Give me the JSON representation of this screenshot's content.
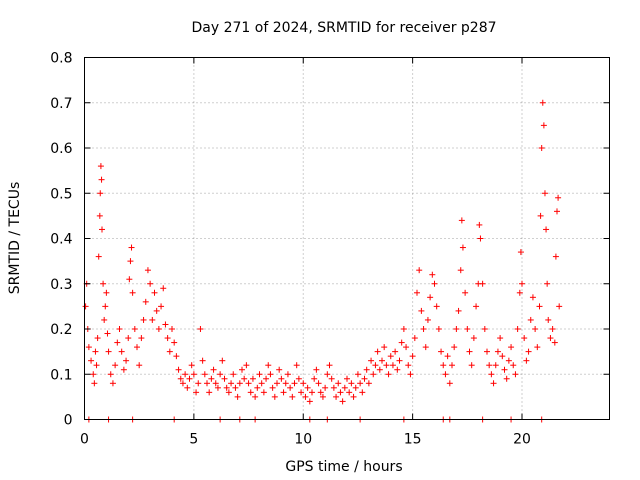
{
  "chart_data": {
    "type": "scatter",
    "title": "Day 271 of 2024, SRMTID for receiver p287",
    "xlabel": "GPS time / hours",
    "ylabel": "SRMTID / TECUs",
    "xlim": [
      0,
      24
    ],
    "ylim": [
      0,
      0.8
    ],
    "x_ticks": [
      0,
      5,
      10,
      15,
      20
    ],
    "x_tick_labels": [
      "0",
      "5",
      "10",
      "15",
      "20"
    ],
    "y_ticks": [
      0,
      0.1,
      0.2,
      0.3,
      0.4,
      0.5,
      0.6,
      0.7,
      0.8
    ],
    "y_tick_labels": [
      "0",
      "0.1",
      "0.2",
      "0.3",
      "0.4",
      "0.5",
      "0.6",
      "0.7",
      "0.8"
    ],
    "grid": true,
    "marker": "+",
    "series": [
      {
        "name": "SRMTID",
        "color": "#ff0000",
        "points": [
          [
            0.05,
            0.25
          ],
          [
            0.1,
            0.3
          ],
          [
            0.15,
            0.2
          ],
          [
            0.2,
            0.16
          ],
          [
            0.3,
            0.13
          ],
          [
            0.4,
            0.1
          ],
          [
            0.45,
            0.08
          ],
          [
            0.5,
            0.15
          ],
          [
            0.55,
            0.12
          ],
          [
            0.6,
            0.18
          ],
          [
            0.65,
            0.36
          ],
          [
            0.7,
            0.45
          ],
          [
            0.72,
            0.5
          ],
          [
            0.75,
            0.56
          ],
          [
            0.78,
            0.53
          ],
          [
            0.8,
            0.42
          ],
          [
            0.85,
            0.3
          ],
          [
            0.9,
            0.22
          ],
          [
            0.95,
            0.25
          ],
          [
            1.0,
            0.28
          ],
          [
            1.05,
            0.19
          ],
          [
            1.1,
            0.15
          ],
          [
            1.2,
            0.1
          ],
          [
            1.3,
            0.08
          ],
          [
            1.4,
            0.12
          ],
          [
            1.5,
            0.17
          ],
          [
            1.6,
            0.2
          ],
          [
            1.7,
            0.15
          ],
          [
            1.8,
            0.11
          ],
          [
            1.9,
            0.13
          ],
          [
            2.0,
            0.18
          ],
          [
            2.05,
            0.31
          ],
          [
            2.1,
            0.35
          ],
          [
            2.15,
            0.38
          ],
          [
            2.2,
            0.28
          ],
          [
            2.3,
            0.2
          ],
          [
            2.4,
            0.16
          ],
          [
            2.5,
            0.12
          ],
          [
            2.6,
            0.18
          ],
          [
            2.7,
            0.22
          ],
          [
            2.8,
            0.26
          ],
          [
            2.9,
            0.33
          ],
          [
            3.0,
            0.3
          ],
          [
            3.1,
            0.22
          ],
          [
            3.2,
            0.28
          ],
          [
            3.3,
            0.24
          ],
          [
            3.4,
            0.2
          ],
          [
            3.5,
            0.25
          ],
          [
            3.6,
            0.29
          ],
          [
            3.7,
            0.21
          ],
          [
            3.8,
            0.18
          ],
          [
            3.9,
            0.15
          ],
          [
            4.0,
            0.2
          ],
          [
            4.1,
            0.17
          ],
          [
            4.2,
            0.14
          ],
          [
            4.3,
            0.11
          ],
          [
            4.4,
            0.09
          ],
          [
            4.5,
            0.08
          ],
          [
            4.6,
            0.1
          ],
          [
            4.7,
            0.07
          ],
          [
            4.8,
            0.09
          ],
          [
            4.9,
            0.12
          ],
          [
            5.0,
            0.1
          ],
          [
            5.1,
            0.06
          ],
          [
            5.2,
            0.08
          ],
          [
            5.3,
            0.2
          ],
          [
            5.4,
            0.13
          ],
          [
            5.5,
            0.1
          ],
          [
            5.6,
            0.08
          ],
          [
            5.7,
            0.06
          ],
          [
            5.8,
            0.09
          ],
          [
            5.9,
            0.11
          ],
          [
            6.0,
            0.08
          ],
          [
            6.1,
            0.07
          ],
          [
            6.2,
            0.1
          ],
          [
            6.3,
            0.13
          ],
          [
            6.4,
            0.09
          ],
          [
            6.5,
            0.07
          ],
          [
            6.6,
            0.06
          ],
          [
            6.7,
            0.08
          ],
          [
            6.8,
            0.1
          ],
          [
            6.9,
            0.07
          ],
          [
            7.0,
            0.05
          ],
          [
            7.1,
            0.08
          ],
          [
            7.2,
            0.11
          ],
          [
            7.3,
            0.09
          ],
          [
            7.4,
            0.12
          ],
          [
            7.5,
            0.08
          ],
          [
            7.6,
            0.06
          ],
          [
            7.7,
            0.09
          ],
          [
            7.8,
            0.05
          ],
          [
            7.9,
            0.07
          ],
          [
            8.0,
            0.1
          ],
          [
            8.1,
            0.08
          ],
          [
            8.2,
            0.06
          ],
          [
            8.3,
            0.09
          ],
          [
            8.4,
            0.12
          ],
          [
            8.5,
            0.1
          ],
          [
            8.6,
            0.07
          ],
          [
            8.7,
            0.05
          ],
          [
            8.8,
            0.08
          ],
          [
            8.9,
            0.11
          ],
          [
            9.0,
            0.09
          ],
          [
            9.1,
            0.06
          ],
          [
            9.2,
            0.08
          ],
          [
            9.3,
            0.1
          ],
          [
            9.4,
            0.07
          ],
          [
            9.5,
            0.05
          ],
          [
            9.6,
            0.08
          ],
          [
            9.7,
            0.12
          ],
          [
            9.8,
            0.09
          ],
          [
            9.9,
            0.06
          ],
          [
            10.0,
            0.08
          ],
          [
            10.1,
            0.05
          ],
          [
            10.2,
            0.07
          ],
          [
            10.3,
            0.04
          ],
          [
            10.4,
            0.06
          ],
          [
            10.5,
            0.09
          ],
          [
            10.6,
            0.11
          ],
          [
            10.7,
            0.08
          ],
          [
            10.8,
            0.06
          ],
          [
            10.9,
            0.05
          ],
          [
            11.0,
            0.07
          ],
          [
            11.1,
            0.1
          ],
          [
            11.2,
            0.12
          ],
          [
            11.3,
            0.09
          ],
          [
            11.4,
            0.07
          ],
          [
            11.5,
            0.05
          ],
          [
            11.6,
            0.08
          ],
          [
            11.7,
            0.06
          ],
          [
            11.8,
            0.04
          ],
          [
            11.9,
            0.07
          ],
          [
            12.0,
            0.09
          ],
          [
            12.1,
            0.06
          ],
          [
            12.2,
            0.08
          ],
          [
            12.3,
            0.05
          ],
          [
            12.4,
            0.07
          ],
          [
            12.5,
            0.1
          ],
          [
            12.6,
            0.08
          ],
          [
            12.7,
            0.06
          ],
          [
            12.8,
            0.09
          ],
          [
            12.9,
            0.11
          ],
          [
            13.0,
            0.08
          ],
          [
            13.1,
            0.13
          ],
          [
            13.2,
            0.1
          ],
          [
            13.3,
            0.12
          ],
          [
            13.4,
            0.15
          ],
          [
            13.5,
            0.11
          ],
          [
            13.6,
            0.13
          ],
          [
            13.7,
            0.16
          ],
          [
            13.8,
            0.12
          ],
          [
            13.9,
            0.1
          ],
          [
            14.0,
            0.14
          ],
          [
            14.1,
            0.12
          ],
          [
            14.2,
            0.15
          ],
          [
            14.3,
            0.11
          ],
          [
            14.4,
            0.13
          ],
          [
            14.5,
            0.17
          ],
          [
            14.6,
            0.2
          ],
          [
            14.7,
            0.16
          ],
          [
            14.8,
            0.12
          ],
          [
            14.9,
            0.1
          ],
          [
            15.0,
            0.14
          ],
          [
            15.1,
            0.18
          ],
          [
            15.2,
            0.28
          ],
          [
            15.3,
            0.33
          ],
          [
            15.4,
            0.24
          ],
          [
            15.5,
            0.2
          ],
          [
            15.6,
            0.16
          ],
          [
            15.7,
            0.22
          ],
          [
            15.8,
            0.27
          ],
          [
            15.9,
            0.32
          ],
          [
            16.0,
            0.3
          ],
          [
            16.1,
            0.25
          ],
          [
            16.2,
            0.2
          ],
          [
            16.3,
            0.15
          ],
          [
            16.4,
            0.12
          ],
          [
            16.5,
            0.1
          ],
          [
            16.6,
            0.14
          ],
          [
            16.7,
            0.08
          ],
          [
            16.8,
            0.12
          ],
          [
            16.9,
            0.16
          ],
          [
            17.0,
            0.2
          ],
          [
            17.1,
            0.24
          ],
          [
            17.2,
            0.33
          ],
          [
            17.25,
            0.44
          ],
          [
            17.3,
            0.38
          ],
          [
            17.4,
            0.28
          ],
          [
            17.5,
            0.2
          ],
          [
            17.6,
            0.15
          ],
          [
            17.7,
            0.12
          ],
          [
            17.8,
            0.18
          ],
          [
            17.9,
            0.25
          ],
          [
            18.0,
            0.3
          ],
          [
            18.05,
            0.43
          ],
          [
            18.1,
            0.4
          ],
          [
            18.2,
            0.3
          ],
          [
            18.3,
            0.2
          ],
          [
            18.4,
            0.15
          ],
          [
            18.5,
            0.12
          ],
          [
            18.6,
            0.1
          ],
          [
            18.7,
            0.08
          ],
          [
            18.8,
            0.12
          ],
          [
            18.9,
            0.15
          ],
          [
            19.0,
            0.18
          ],
          [
            19.1,
            0.14
          ],
          [
            19.2,
            0.11
          ],
          [
            19.3,
            0.09
          ],
          [
            19.4,
            0.13
          ],
          [
            19.5,
            0.16
          ],
          [
            19.6,
            0.12
          ],
          [
            19.7,
            0.1
          ],
          [
            19.8,
            0.2
          ],
          [
            19.9,
            0.28
          ],
          [
            19.95,
            0.37
          ],
          [
            20.0,
            0.3
          ],
          [
            20.1,
            0.18
          ],
          [
            20.2,
            0.13
          ],
          [
            20.3,
            0.15
          ],
          [
            20.4,
            0.22
          ],
          [
            20.5,
            0.27
          ],
          [
            20.6,
            0.2
          ],
          [
            20.7,
            0.16
          ],
          [
            20.8,
            0.25
          ],
          [
            20.85,
            0.45
          ],
          [
            20.9,
            0.6
          ],
          [
            20.95,
            0.7
          ],
          [
            21.0,
            0.65
          ],
          [
            21.05,
            0.5
          ],
          [
            21.1,
            0.42
          ],
          [
            21.15,
            0.3
          ],
          [
            21.2,
            0.22
          ],
          [
            21.3,
            0.18
          ],
          [
            21.4,
            0.2
          ],
          [
            21.5,
            0.17
          ],
          [
            21.55,
            0.36
          ],
          [
            21.6,
            0.46
          ],
          [
            21.65,
            0.49
          ],
          [
            21.7,
            0.25
          ]
        ],
        "zero_points": [
          0.2,
          1.1,
          2.2,
          4.1,
          6.2,
          7.1,
          7.8,
          10.3,
          11.1,
          12.6,
          14.6,
          16.4,
          16.7,
          18.2,
          19.5,
          20.9
        ]
      }
    ]
  }
}
